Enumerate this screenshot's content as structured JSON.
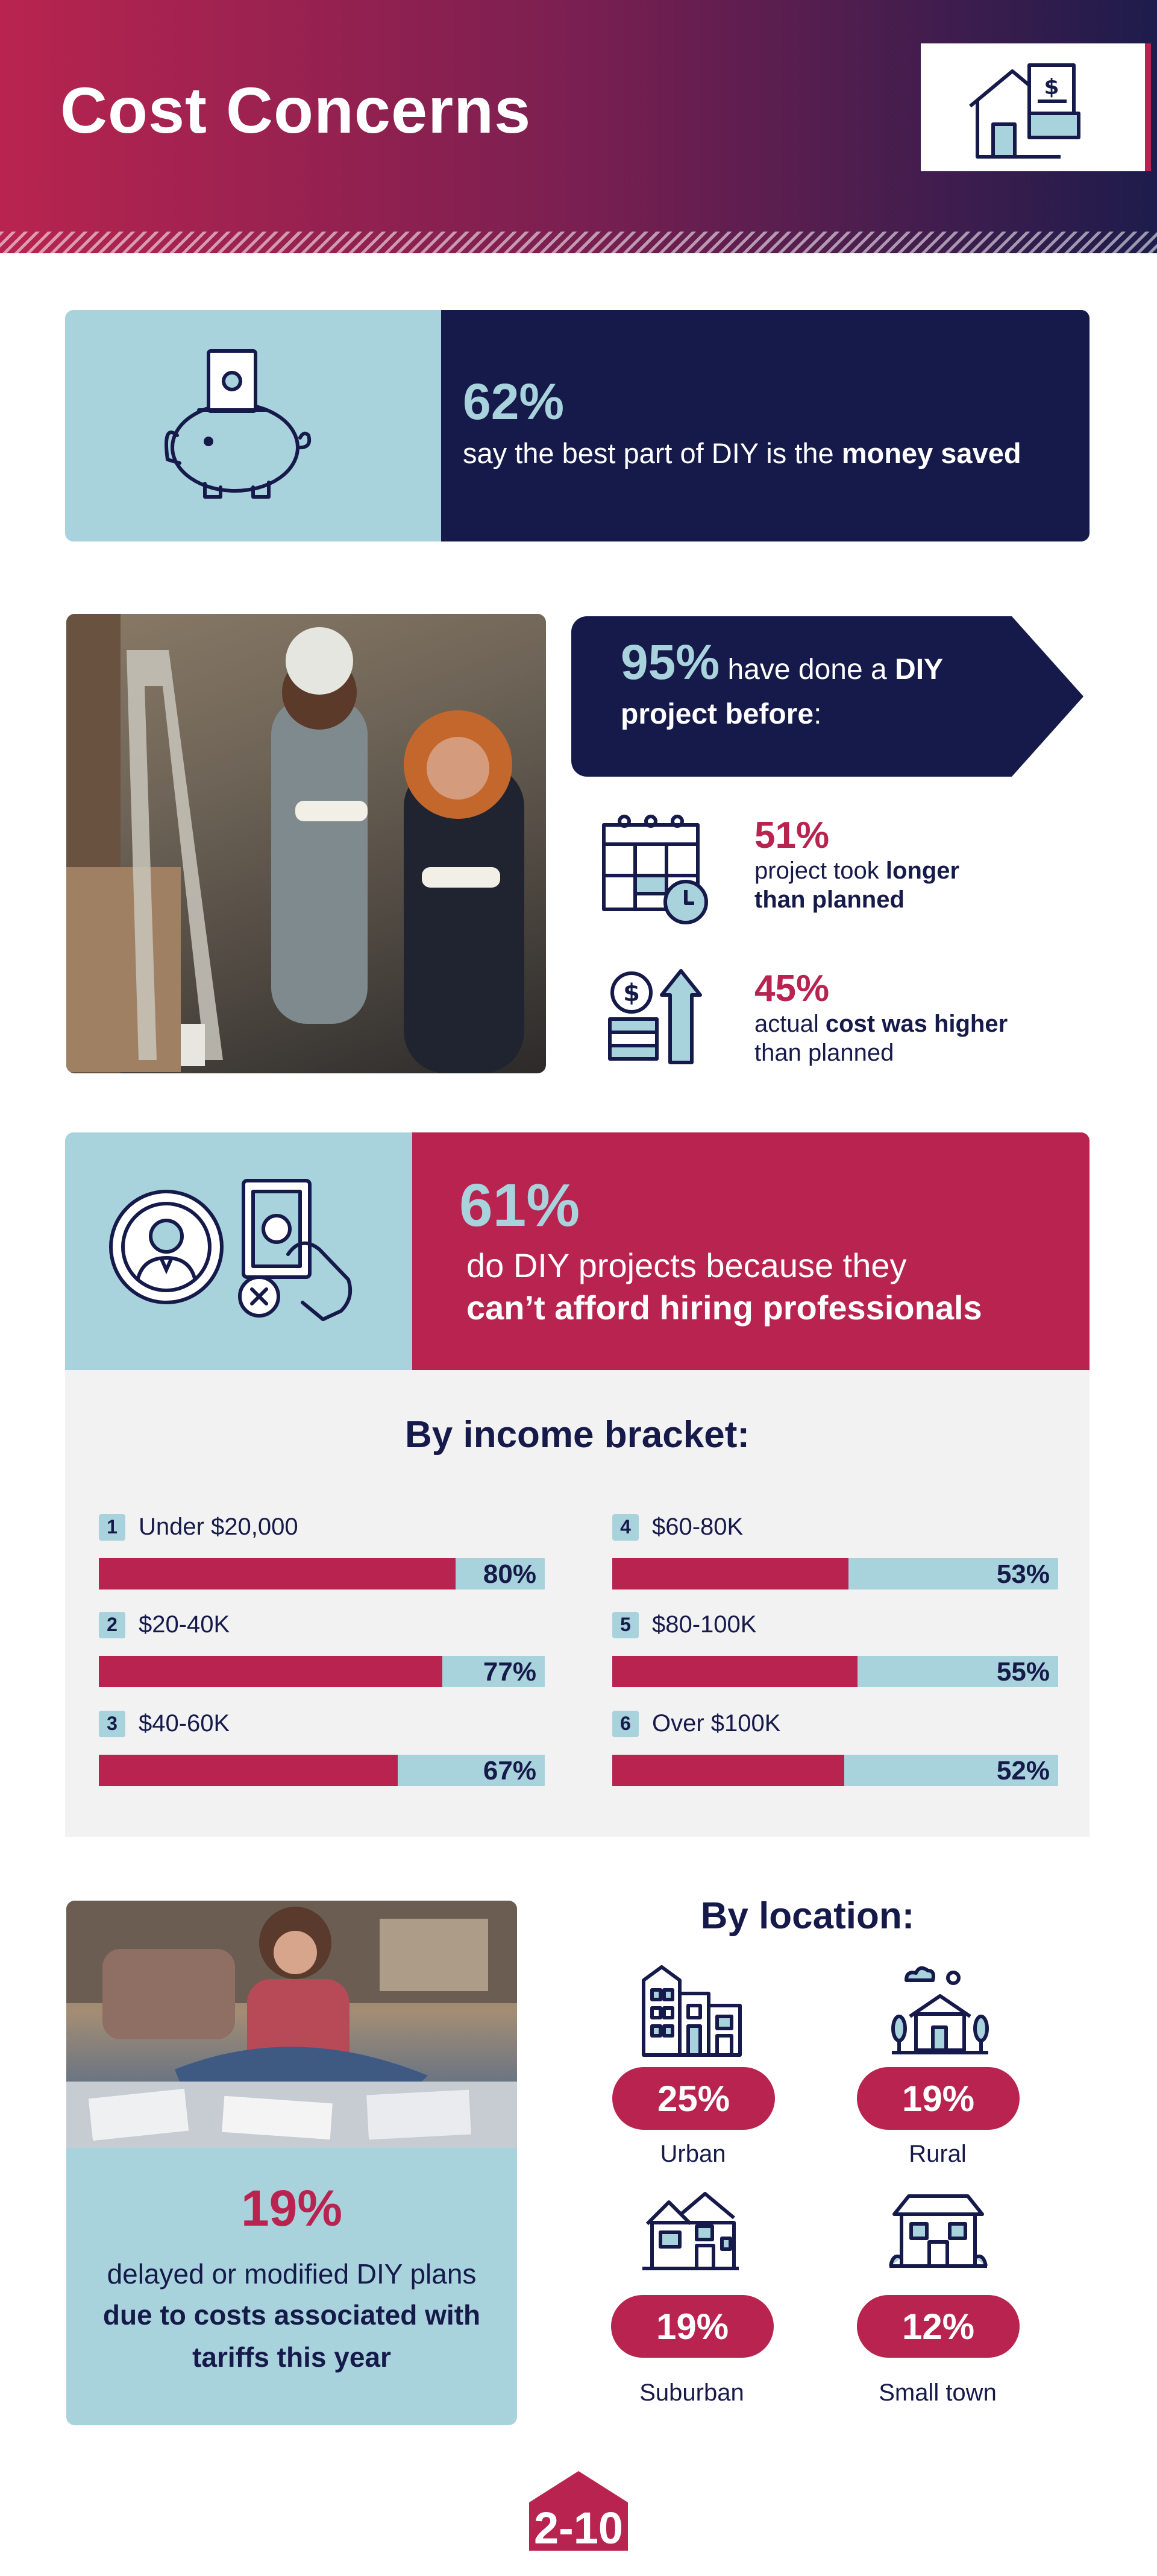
{
  "header": {
    "title": "Cost Concerns",
    "icon": "house-receipt-icon"
  },
  "stat_money_saved": {
    "icon": "piggy-bank-icon",
    "percent": "62%",
    "text_plain": "say the best part of DIY is the ",
    "text_bold": "money saved"
  },
  "stat_done_before": {
    "percent": "95%",
    "text_plain1": " have done a ",
    "text_bold1": "DIY",
    "text_bold2": "project before",
    "text_plain2": ":",
    "items": [
      {
        "icon": "calendar-clock-icon",
        "percent": "51%",
        "line1_plain": "project took ",
        "line1_bold": "longer",
        "line2_bold": "than planned",
        "line2_plain": ""
      },
      {
        "icon": "coins-arrow-up-icon",
        "percent": "45%",
        "line1_plain": "actual ",
        "line1_bold": "cost was higher",
        "line2_bold": "",
        "line2_plain": "than planned"
      }
    ]
  },
  "stat_afford": {
    "percent": "61%",
    "line1": "do DIY projects because they",
    "line2": "can’t afford hiring professionals",
    "icon_a": "professional-avatar-icon",
    "icon_b": "hand-money-no-icon"
  },
  "income": {
    "title": "By income bracket:",
    "brackets": [
      {
        "num": "1",
        "label": "Under $20,000",
        "value_label": "80%",
        "value": 80
      },
      {
        "num": "2",
        "label": "$20-40K",
        "value_label": "77%",
        "value": 77
      },
      {
        "num": "3",
        "label": "$40-60K",
        "value_label": "67%",
        "value": 67
      },
      {
        "num": "4",
        "label": "$60-80K",
        "value_label": "53%",
        "value": 53
      },
      {
        "num": "5",
        "label": "$80-100K",
        "value_label": "55%",
        "value": 55
      },
      {
        "num": "6",
        "label": "Over $100K",
        "value_label": "52%",
        "value": 52
      }
    ]
  },
  "tariff": {
    "percent": "19%",
    "line1": "delayed or modified DIY plans",
    "line2": "due to costs associated with",
    "line3": "tariffs this year"
  },
  "location": {
    "title": "By location:",
    "items": [
      {
        "percent": "25%",
        "label": "Urban",
        "icon": "city-buildings-icon"
      },
      {
        "percent": "19%",
        "label": "Rural",
        "icon": "rural-house-icon"
      },
      {
        "percent": "19%",
        "label": "Suburban",
        "icon": "suburban-house-icon"
      },
      {
        "percent": "12%",
        "label": "Small town",
        "icon": "small-town-house-icon"
      }
    ]
  },
  "footer": {
    "logo_text": "2-10"
  },
  "colors": {
    "navy": "#161a4a",
    "berry": "#b8234f",
    "light_blue": "#a9d3dc",
    "panel_gray": "#f2f2f2"
  }
}
